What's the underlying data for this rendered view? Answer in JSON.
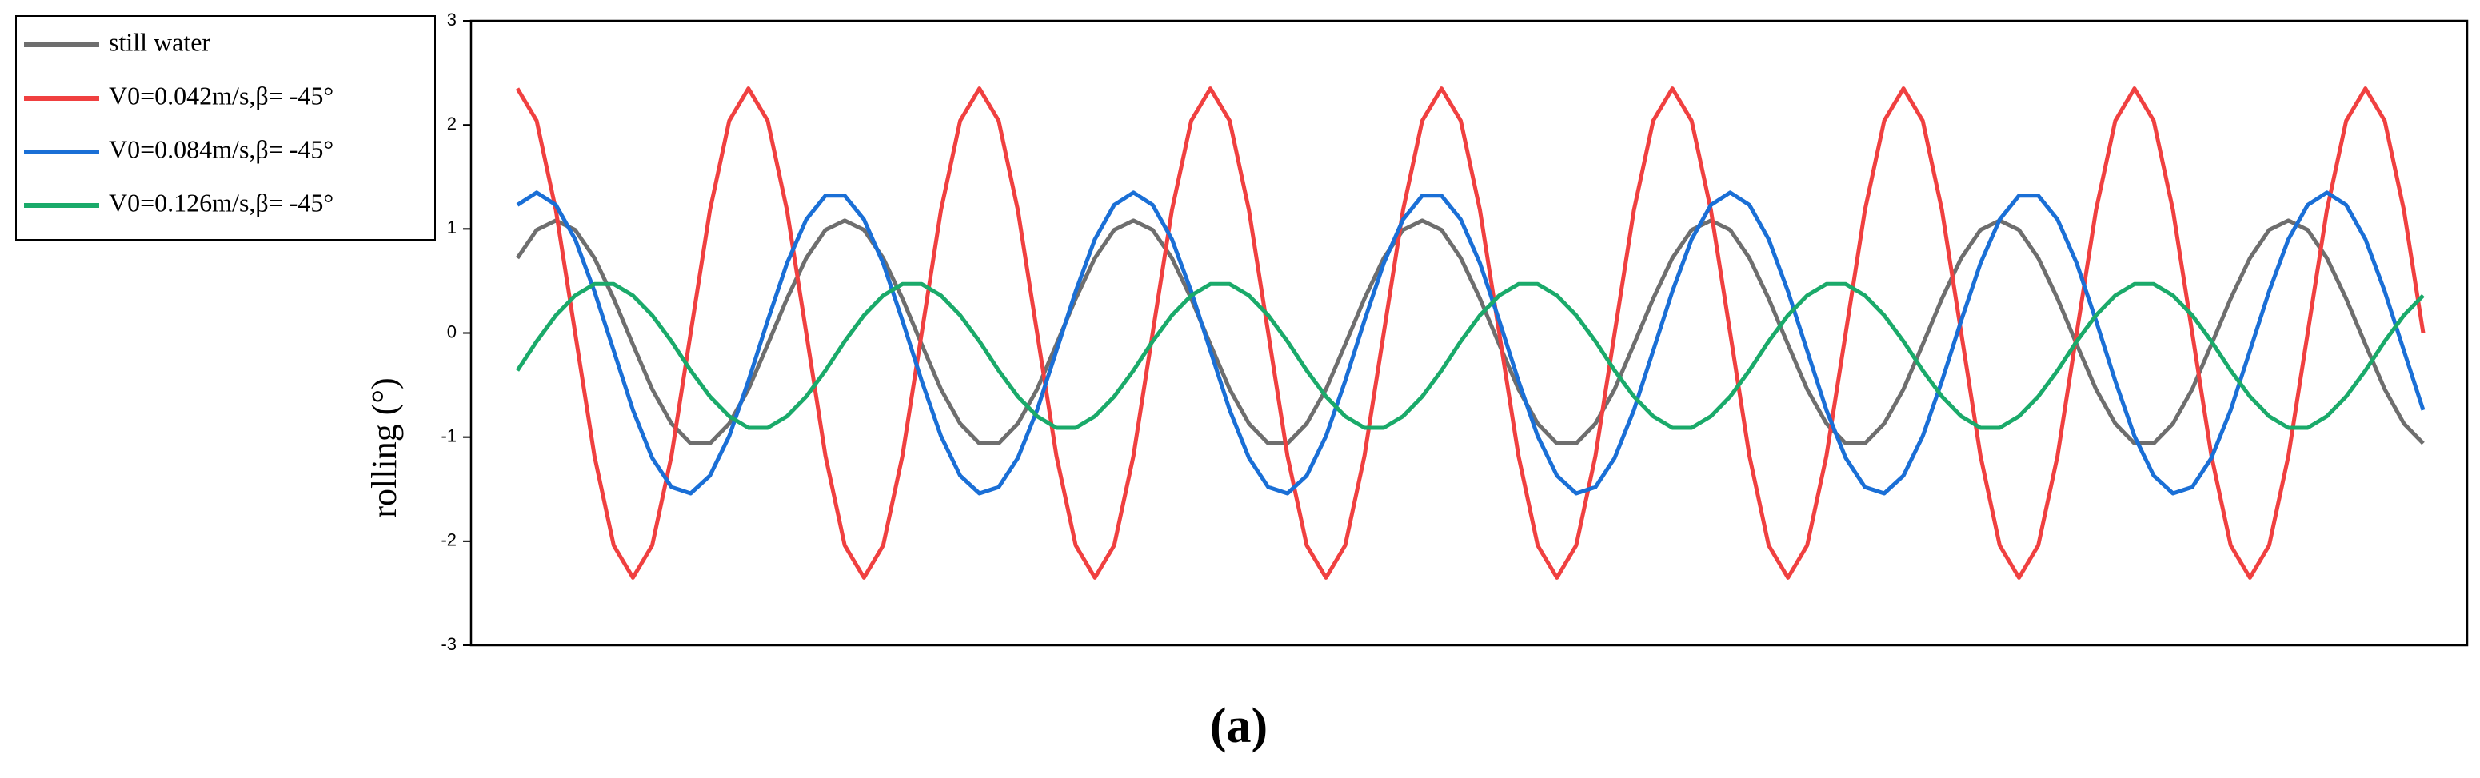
{
  "chart_data": {
    "type": "line",
    "title": "(a)",
    "y_label": "rolling (°)",
    "ylim": [
      -3,
      3
    ],
    "yticks": [
      -3,
      -2,
      -1,
      0,
      1,
      2,
      3
    ],
    "legend": "outside-left-top",
    "series": [
      {
        "name": "still water",
        "color": "#6e6e6e",
        "values": [
          0.72,
          0.99,
          1.08,
          0.99,
          0.72,
          0.33,
          -0.11,
          -0.54,
          -0.87,
          -1.06,
          -1.06,
          -0.87,
          -0.54,
          -0.11,
          0.33,
          0.72,
          0.99,
          1.08,
          0.99,
          0.72,
          0.33,
          -0.11,
          -0.54,
          -0.87,
          -1.06,
          -1.06,
          -0.87,
          -0.54,
          -0.11,
          0.33,
          0.72,
          0.99,
          1.08,
          0.99,
          0.72,
          0.33,
          -0.11,
          -0.54,
          -0.87,
          -1.06,
          -1.06,
          -0.87,
          -0.54,
          -0.11,
          0.33,
          0.72,
          0.99,
          1.08,
          0.99,
          0.72,
          0.33,
          -0.11,
          -0.54,
          -0.87,
          -1.06,
          -1.06,
          -0.87,
          -0.54,
          -0.11,
          0.33,
          0.72,
          0.99,
          1.08,
          0.99,
          0.72,
          0.33,
          -0.11,
          -0.54,
          -0.87,
          -1.06,
          -1.06,
          -0.87,
          -0.54,
          -0.11,
          0.33,
          0.72,
          0.99,
          1.08,
          0.99,
          0.72,
          0.33,
          -0.11,
          -0.54,
          -0.87,
          -1.06,
          -1.06,
          -0.87,
          -0.54,
          -0.11,
          0.33,
          0.72,
          0.99,
          1.08,
          0.99,
          0.72,
          0.33,
          -0.11,
          -0.54,
          -0.87,
          -1.06
        ]
      },
      {
        "name": "V0=0.042m/s,β= -45°",
        "color": "#f04040",
        "values": [
          2.35,
          2.04,
          1.18,
          0,
          -1.18,
          -2.04,
          -2.35,
          -2.04,
          -1.18,
          0,
          1.18,
          2.04,
          2.35,
          2.04,
          1.18,
          0,
          -1.18,
          -2.04,
          -2.35,
          -2.04,
          -1.18,
          0,
          1.18,
          2.04,
          2.35,
          2.04,
          1.18,
          0,
          -1.18,
          -2.04,
          -2.35,
          -2.04,
          -1.18,
          0,
          1.18,
          2.04,
          2.35,
          2.04,
          1.18,
          0,
          -1.18,
          -2.04,
          -2.35,
          -2.04,
          -1.18,
          0,
          1.18,
          2.04,
          2.35,
          2.04,
          1.18,
          0,
          -1.18,
          -2.04,
          -2.35,
          -2.04,
          -1.18,
          0,
          1.18,
          2.04,
          2.35,
          2.04,
          1.18,
          0,
          -1.18,
          -2.04,
          -2.35,
          -2.04,
          -1.18,
          0,
          1.18,
          2.04,
          2.35,
          2.04,
          1.18,
          0,
          -1.18,
          -2.04,
          -2.35,
          -2.04,
          -1.18,
          0,
          1.18,
          2.04,
          2.35,
          2.04,
          1.18,
          0,
          -1.18,
          -2.04,
          -2.35,
          -2.04,
          -1.18,
          0,
          1.18,
          2.04,
          2.35,
          2.04,
          1.18,
          0
        ]
      },
      {
        "name": "V0=0.084m/s,β= -45°",
        "color": "#1a6fd6",
        "values": [
          1.23,
          1.35,
          1.23,
          0.9,
          0.4,
          -0.17,
          -0.74,
          -1.2,
          -1.48,
          -1.54,
          -1.37,
          -0.99,
          -0.46,
          0.12,
          0.67,
          1.09,
          1.32,
          1.32,
          1.09,
          0.67,
          0.12,
          -0.46,
          -0.99,
          -1.37,
          -1.54,
          -1.48,
          -1.2,
          -0.74,
          -0.17,
          0.4,
          0.9,
          1.23,
          1.35,
          1.23,
          0.9,
          0.4,
          -0.17,
          -0.74,
          -1.2,
          -1.48,
          -1.54,
          -1.37,
          -0.99,
          -0.46,
          0.12,
          0.67,
          1.09,
          1.32,
          1.32,
          1.09,
          0.67,
          0.12,
          -0.46,
          -0.99,
          -1.37,
          -1.54,
          -1.48,
          -1.2,
          -0.74,
          -0.17,
          0.4,
          0.9,
          1.23,
          1.35,
          1.23,
          0.9,
          0.4,
          -0.17,
          -0.74,
          -1.2,
          -1.48,
          -1.54,
          -1.37,
          -0.99,
          -0.46,
          0.12,
          0.67,
          1.09,
          1.32,
          1.32,
          1.09,
          0.67,
          0.12,
          -0.46,
          -0.99,
          -1.37,
          -1.54,
          -1.48,
          -1.2,
          -0.74,
          -0.17,
          0.4,
          0.9,
          1.23,
          1.35,
          1.23,
          0.9,
          0.4,
          -0.17,
          -0.74
        ]
      },
      {
        "name": "V0=0.126m/s,β= -45°",
        "color": "#1aaa6a",
        "values": [
          -0.36,
          -0.08,
          0.17,
          0.36,
          0.47,
          0.47,
          0.36,
          0.17,
          -0.08,
          -0.36,
          -0.61,
          -0.8,
          -0.91,
          -0.91,
          -0.8,
          -0.61,
          -0.36,
          -0.08,
          0.17,
          0.36,
          0.47,
          0.47,
          0.36,
          0.17,
          -0.08,
          -0.36,
          -0.61,
          -0.8,
          -0.91,
          -0.91,
          -0.8,
          -0.61,
          -0.36,
          -0.08,
          0.17,
          0.36,
          0.47,
          0.47,
          0.36,
          0.17,
          -0.08,
          -0.36,
          -0.61,
          -0.8,
          -0.91,
          -0.91,
          -0.8,
          -0.61,
          -0.36,
          -0.08,
          0.17,
          0.36,
          0.47,
          0.47,
          0.36,
          0.17,
          -0.08,
          -0.36,
          -0.61,
          -0.8,
          -0.91,
          -0.91,
          -0.8,
          -0.61,
          -0.36,
          -0.08,
          0.17,
          0.36,
          0.47,
          0.47,
          0.36,
          0.17,
          -0.08,
          -0.36,
          -0.61,
          -0.8,
          -0.91,
          -0.91,
          -0.8,
          -0.61,
          -0.36,
          -0.08,
          0.17,
          0.36,
          0.47,
          0.47,
          0.36,
          0.17,
          -0.08,
          -0.36,
          -0.61,
          -0.8,
          -0.91,
          -0.91,
          -0.8,
          -0.61,
          -0.36,
          -0.08,
          0.17,
          0.36
        ]
      }
    ]
  }
}
